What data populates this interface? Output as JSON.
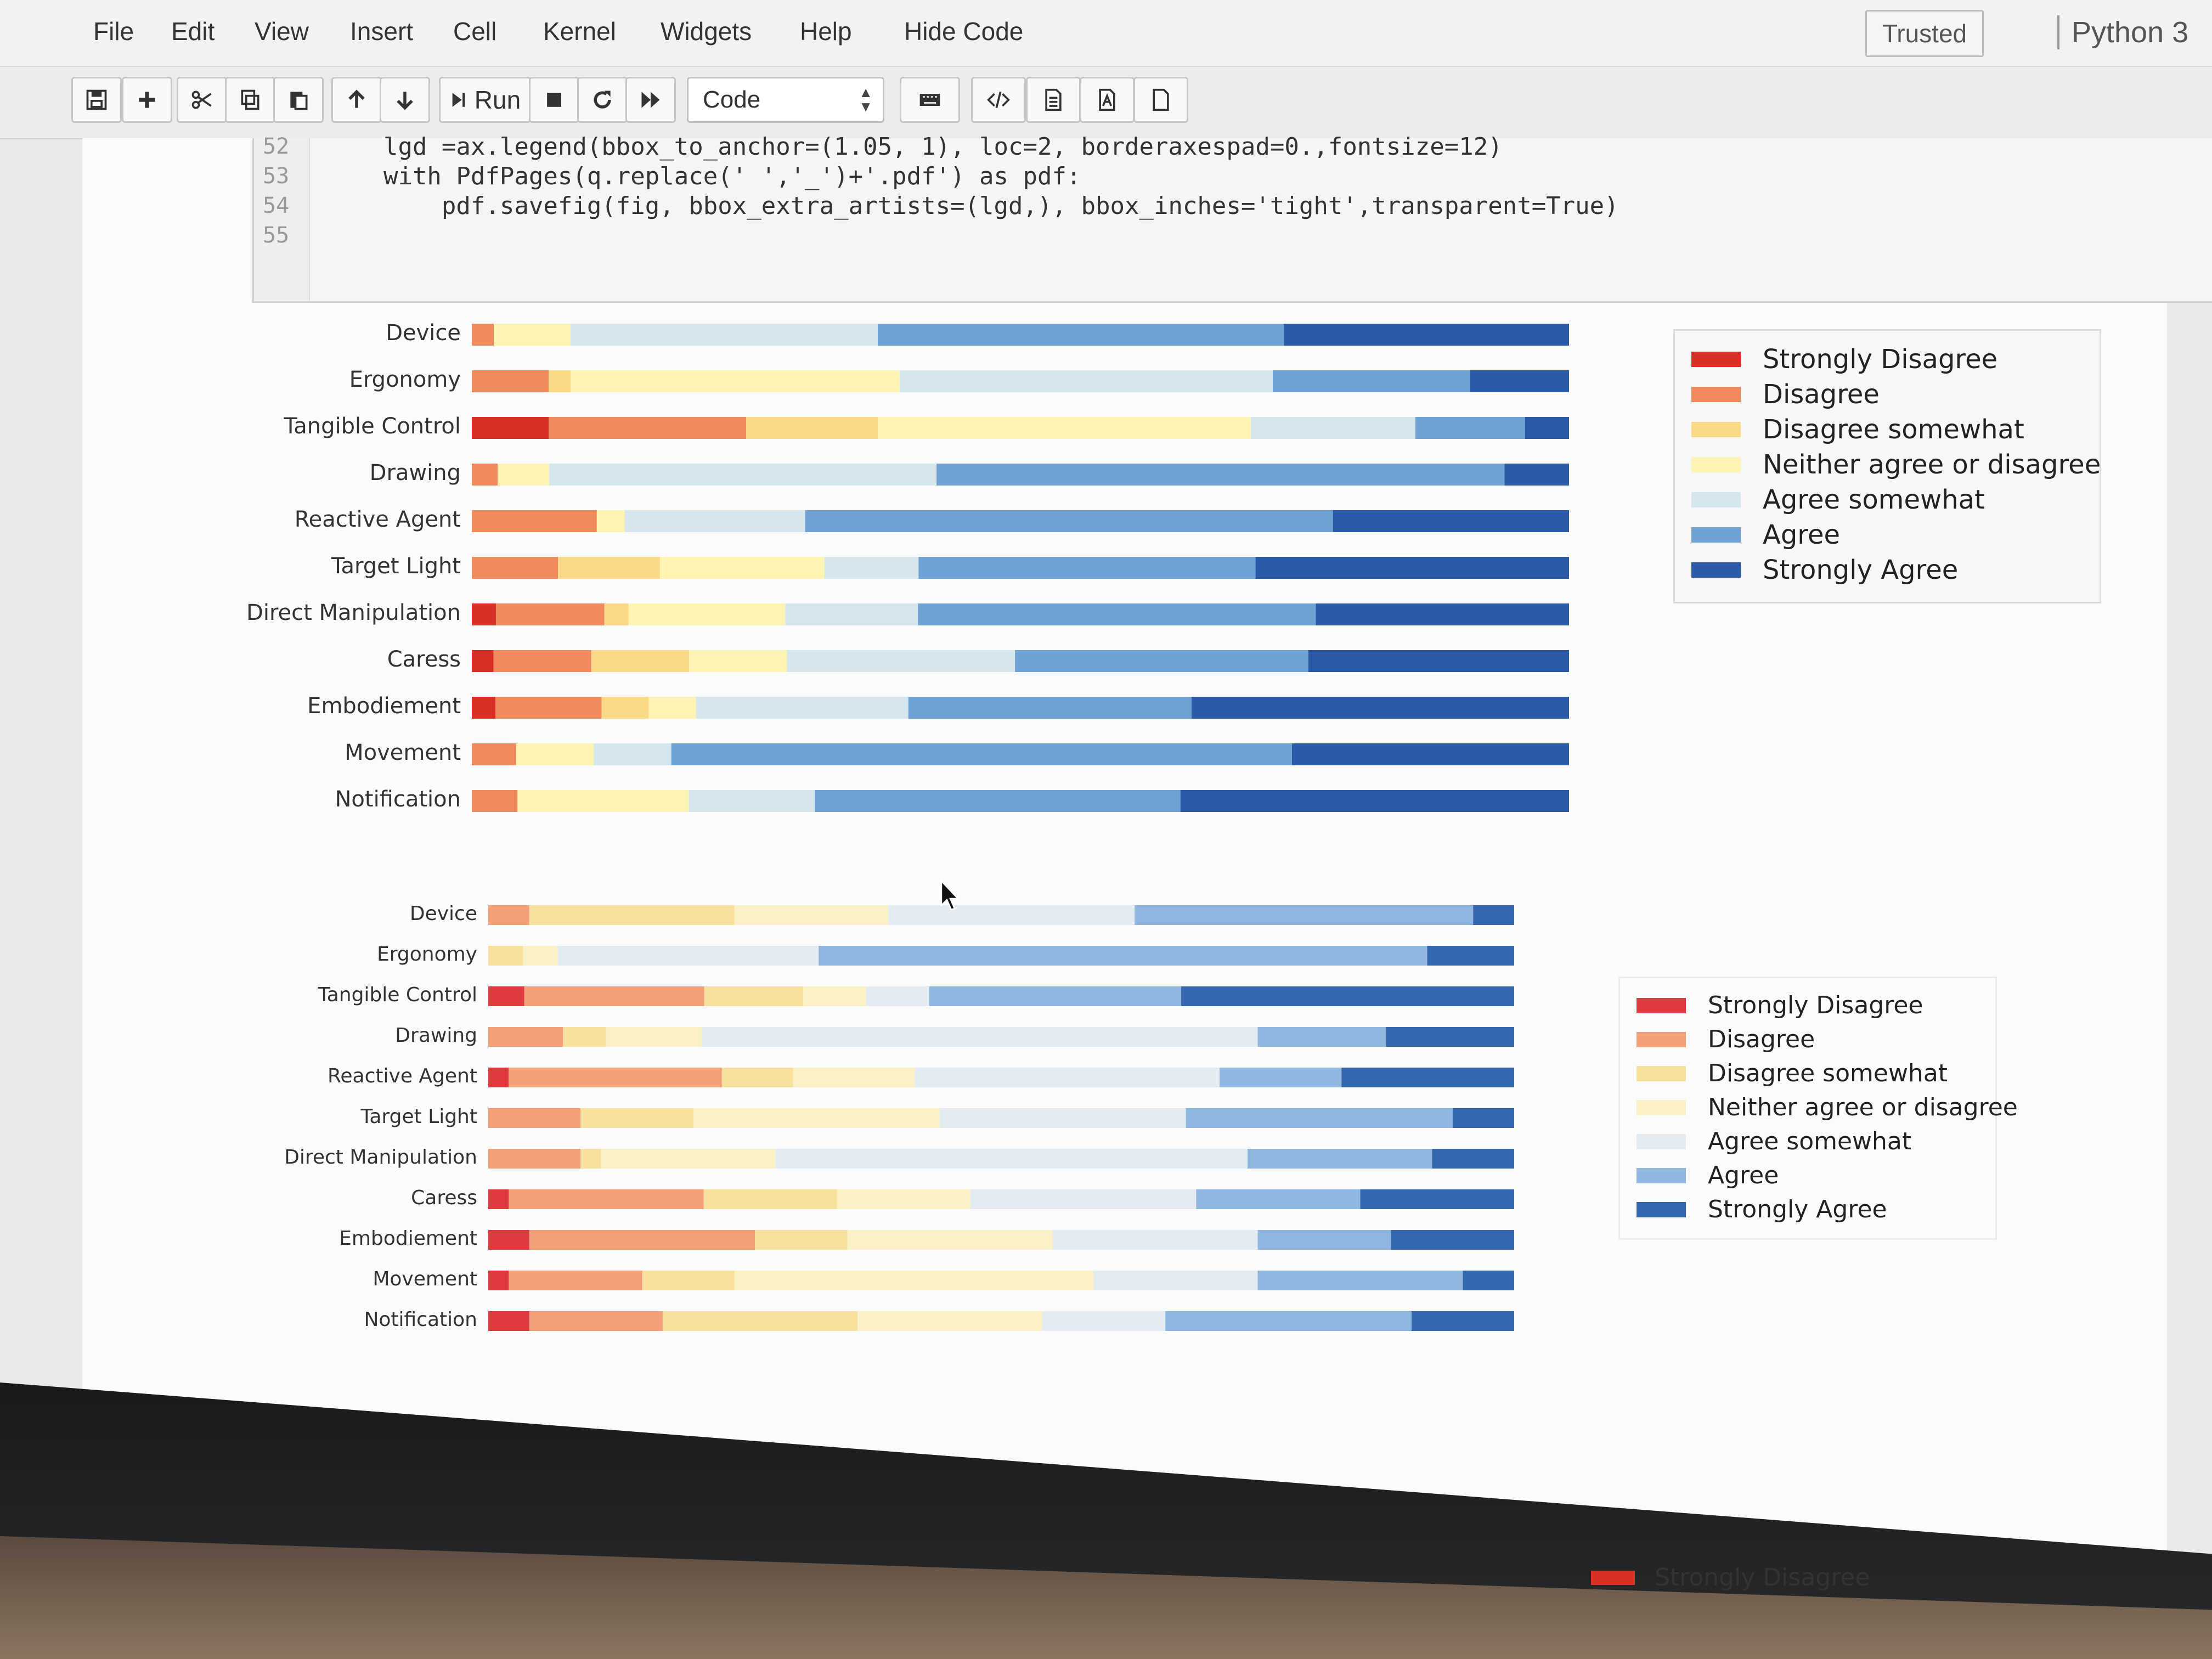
{
  "menubar": {
    "items": [
      "File",
      "Edit",
      "View",
      "Insert",
      "Cell",
      "Kernel",
      "Widgets",
      "Help",
      "Hide Code"
    ],
    "trusted": "Trusted",
    "kernel": "Python 3"
  },
  "toolbar": {
    "run_label": "Run",
    "cell_type": "Code",
    "icons": [
      "save-icon",
      "add-cell-icon",
      "cut-icon",
      "copy-icon",
      "paste-icon",
      "move-up-icon",
      "move-down-icon",
      "run-icon",
      "stop-icon",
      "restart-icon",
      "fast-forward-icon",
      "keyboard-icon",
      "code-icon",
      "document-icon",
      "pdf-icon",
      "blank-page-icon"
    ]
  },
  "code": {
    "lines": [
      {
        "num": "52",
        "text": "    lgd =ax.legend(bbox_to_anchor=(1.05, 1), loc=2, borderaxespad=0.,fontsize=12)"
      },
      {
        "num": "53",
        "text": "    with PdfPages(q.replace(' ','_')+'.pdf') as pdf:"
      },
      {
        "num": "54",
        "text": "        pdf.savefig(fig, bbox_extra_artists=(lgd,), bbox_inches='tight',transparent=True)"
      },
      {
        "num": "55",
        "text": ""
      }
    ]
  },
  "legend": {
    "entries": [
      "Strongly Disagree",
      "Disagree",
      "Disagree somewhat",
      "Neither agree or disagree",
      "Agree somewhat",
      "Agree",
      "Strongly Agree"
    ],
    "colors": [
      "#d73027",
      "#f08a5d",
      "#fbd987",
      "#fdf3b2",
      "#d6e6ef",
      "#6fa1d3",
      "#2b5ba8"
    ],
    "colors_chart2": [
      "#e0393f",
      "#f3a07a",
      "#f8e19c",
      "#fbf1c6",
      "#e2ecf2",
      "#8fb8e0",
      "#3368ae"
    ],
    "third_chart_visible_entry": "Strongly Disagree"
  },
  "chart_data": [
    {
      "type": "bar",
      "stacked": true,
      "orientation": "horizontal",
      "categories": [
        "Device",
        "Ergonomy",
        "Tangible Control",
        "Drawing",
        "Reactive Agent",
        "Target Light",
        "Direct Manipulation",
        "Caress",
        "Embodiement",
        "Movement",
        "Notification"
      ],
      "series": [
        {
          "name": "Strongly Disagree",
          "values": [
            0,
            0,
            7,
            0,
            0,
            0,
            2,
            2,
            2,
            0,
            0
          ]
        },
        {
          "name": "Disagree",
          "values": [
            2,
            7,
            18,
            2,
            9,
            11,
            9,
            9,
            9,
            4,
            4
          ]
        },
        {
          "name": "Disagree somewhat",
          "values": [
            0,
            2,
            12,
            0,
            0,
            13,
            2,
            9,
            4,
            0,
            0
          ]
        },
        {
          "name": "Neither agree or disagree",
          "values": [
            7,
            30,
            34,
            4,
            2,
            21,
            13,
            9,
            4,
            7,
            15
          ]
        },
        {
          "name": "Agree somewhat",
          "values": [
            28,
            34,
            15,
            30,
            13,
            12,
            11,
            21,
            18,
            7,
            11
          ]
        },
        {
          "name": "Agree",
          "values": [
            37,
            18,
            10,
            44,
            38,
            43,
            33,
            27,
            24,
            56,
            32
          ]
        },
        {
          "name": "Strongly Agree",
          "values": [
            26,
            9,
            4,
            5,
            17,
            40,
            21,
            24,
            32,
            25,
            34
          ]
        }
      ]
    },
    {
      "type": "bar",
      "stacked": true,
      "orientation": "horizontal",
      "categories": [
        "Device",
        "Ergonomy",
        "Tangible Control",
        "Drawing",
        "Reactive Agent",
        "Target Light",
        "Direct Manipulation",
        "Caress",
        "Embodiement",
        "Movement",
        "Notification"
      ],
      "series": [
        {
          "name": "Strongly Disagree",
          "values": [
            0,
            0,
            4,
            0,
            2,
            0,
            0,
            2,
            4,
            2,
            4
          ]
        },
        {
          "name": "Disagree",
          "values": [
            4,
            0,
            20,
            7,
            21,
            9,
            9,
            19,
            22,
            13,
            13
          ]
        },
        {
          "name": "Disagree somewhat",
          "values": [
            20,
            2,
            11,
            4,
            7,
            11,
            2,
            13,
            9,
            9,
            19
          ]
        },
        {
          "name": "Neither agree or disagree",
          "values": [
            15,
            2,
            7,
            9,
            12,
            24,
            17,
            13,
            20,
            35,
            18
          ]
        },
        {
          "name": "Agree somewhat",
          "values": [
            24,
            15,
            7,
            52,
            30,
            24,
            46,
            22,
            20,
            16,
            12
          ]
        },
        {
          "name": "Agree",
          "values": [
            33,
            35,
            28,
            12,
            12,
            26,
            18,
            16,
            13,
            20,
            24
          ]
        },
        {
          "name": "Strongly Agree",
          "values": [
            4,
            5,
            37,
            12,
            17,
            6,
            8,
            15,
            12,
            5,
            10
          ]
        }
      ]
    }
  ]
}
